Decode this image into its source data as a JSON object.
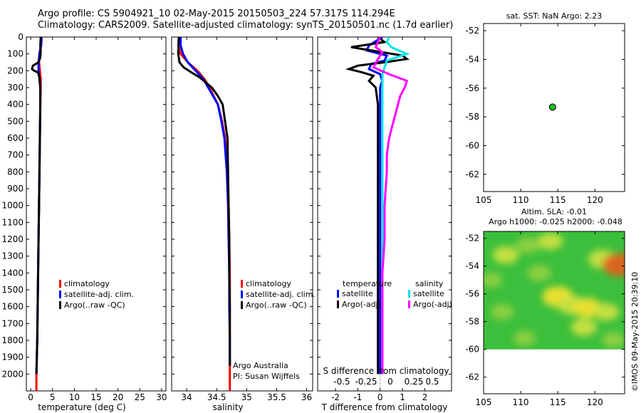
{
  "title_line1": "Argo profile: CS 5904921_10 02-May-2015 20150503_224 57.317S 114.294E",
  "title_line2": "Climatology: CARS2009. Satellite-adjusted climatology: synTS_20150501.nc (1.7d earlier)",
  "stamp": "©IMOS 09-May-2015 20:39:10",
  "colors": {
    "climatology": "#ff0000",
    "satellite": "#0000ff",
    "argo": "#000000",
    "sat_salinity": "#00e5e5",
    "argo_salinity": "#ff00ff",
    "marker": "#22bb22"
  },
  "chart_data": [
    {
      "id": "temperature",
      "type": "line",
      "xlabel": "temperature (deg C)",
      "ylabel": "",
      "xlim": [
        -1,
        31
      ],
      "ylim": [
        2100,
        0
      ],
      "xticks": [
        0,
        5,
        10,
        15,
        20,
        25,
        30
      ],
      "yticks": [
        0,
        100,
        200,
        300,
        400,
        500,
        600,
        700,
        800,
        900,
        1000,
        1100,
        1200,
        1300,
        1400,
        1500,
        1600,
        1700,
        1800,
        1900,
        2000
      ],
      "legend": [
        "climatology",
        "satellite-adj. clim.",
        "Argo(..raw -QC)"
      ],
      "series": [
        {
          "name": "climatology",
          "color": "#ff0000",
          "points": [
            [
              2.4,
              0
            ],
            [
              2.3,
              50
            ],
            [
              2.0,
              100
            ],
            [
              1.9,
              150
            ],
            [
              2.1,
              200
            ],
            [
              2.3,
              250
            ],
            [
              2.3,
              300
            ],
            [
              2.2,
              400
            ],
            [
              2.1,
              600
            ],
            [
              2.0,
              800
            ],
            [
              1.9,
              1000
            ],
            [
              1.8,
              1200
            ],
            [
              1.7,
              1400
            ],
            [
              1.6,
              1600
            ],
            [
              1.5,
              1800
            ],
            [
              1.3,
              2000
            ],
            [
              1.3,
              2100
            ]
          ]
        },
        {
          "name": "satellite-adj. clim.",
          "color": "#0000ff",
          "points": [
            [
              2.5,
              0
            ],
            [
              2.4,
              50
            ],
            [
              2.0,
              100
            ],
            [
              1.8,
              150
            ],
            [
              1.8,
              200
            ],
            [
              2.0,
              250
            ],
            [
              2.2,
              300
            ],
            [
              2.2,
              400
            ],
            [
              2.1,
              600
            ],
            [
              2.0,
              800
            ],
            [
              1.9,
              1000
            ],
            [
              1.8,
              1200
            ],
            [
              1.7,
              1400
            ],
            [
              1.6,
              1600
            ],
            [
              1.5,
              1800
            ],
            [
              1.3,
              2000
            ]
          ]
        },
        {
          "name": "Argo(..raw -QC)",
          "color": "#000000",
          "points": [
            [
              2.3,
              0
            ],
            [
              2.2,
              50
            ],
            [
              2.3,
              80
            ],
            [
              2.2,
              120
            ],
            [
              1.8,
              150
            ],
            [
              0.5,
              170
            ],
            [
              0.3,
              190
            ],
            [
              0.8,
              200
            ],
            [
              1.7,
              210
            ],
            [
              2.0,
              240
            ],
            [
              2.2,
              300
            ],
            [
              2.2,
              400
            ],
            [
              2.1,
              600
            ],
            [
              2.0,
              800
            ],
            [
              1.9,
              1000
            ],
            [
              1.8,
              1200
            ],
            [
              1.7,
              1400
            ],
            [
              1.6,
              1600
            ],
            [
              1.5,
              1800
            ],
            [
              1.3,
              2000
            ]
          ]
        }
      ]
    },
    {
      "id": "salinity",
      "type": "line",
      "xlabel": "salinity",
      "xlim": [
        33.75,
        36.1
      ],
      "ylim": [
        2100,
        0
      ],
      "xticks": [
        34,
        34.5,
        35,
        35.5,
        36
      ],
      "legend": [
        "climatology",
        "satellite-adj. clim.",
        "Argo(..raw -QC)"
      ],
      "annotation": [
        "Argo Australia",
        "PI: Susan Wijffels"
      ],
      "series": [
        {
          "name": "climatology",
          "color": "#ff0000",
          "points": [
            [
              33.87,
              0
            ],
            [
              33.86,
              50
            ],
            [
              33.9,
              100
            ],
            [
              34.02,
              150
            ],
            [
              34.18,
              200
            ],
            [
              34.3,
              250
            ],
            [
              34.38,
              300
            ],
            [
              34.45,
              350
            ],
            [
              34.52,
              400
            ],
            [
              34.59,
              500
            ],
            [
              34.64,
              600
            ],
            [
              34.68,
              800
            ],
            [
              34.7,
              1000
            ],
            [
              34.71,
              1200
            ],
            [
              34.72,
              1400
            ],
            [
              34.72,
              1600
            ],
            [
              34.72,
              1800
            ],
            [
              34.72,
              2000
            ],
            [
              34.72,
              2100
            ]
          ]
        },
        {
          "name": "satellite-adj. clim.",
          "color": "#0000ff",
          "points": [
            [
              33.9,
              0
            ],
            [
              33.9,
              50
            ],
            [
              33.94,
              100
            ],
            [
              34.02,
              150
            ],
            [
              34.15,
              200
            ],
            [
              34.28,
              250
            ],
            [
              34.36,
              300
            ],
            [
              34.44,
              350
            ],
            [
              34.52,
              400
            ],
            [
              34.58,
              500
            ],
            [
              34.63,
              600
            ],
            [
              34.67,
              800
            ],
            [
              34.69,
              1000
            ],
            [
              34.7,
              1200
            ],
            [
              34.71,
              1400
            ],
            [
              34.71,
              1600
            ],
            [
              34.72,
              1800
            ],
            [
              34.72,
              1950
            ]
          ]
        },
        {
          "name": "Argo(..raw -QC)",
          "color": "#000000",
          "points": [
            [
              33.87,
              0
            ],
            [
              33.86,
              100
            ],
            [
              33.88,
              150
            ],
            [
              33.95,
              180
            ],
            [
              34.08,
              210
            ],
            [
              34.22,
              240
            ],
            [
              34.32,
              270
            ],
            [
              34.42,
              300
            ],
            [
              34.52,
              350
            ],
            [
              34.6,
              400
            ],
            [
              34.64,
              500
            ],
            [
              34.68,
              600
            ],
            [
              34.69,
              800
            ],
            [
              34.7,
              1000
            ],
            [
              34.71,
              1200
            ],
            [
              34.71,
              1400
            ],
            [
              34.72,
              1600
            ],
            [
              34.72,
              1800
            ],
            [
              34.72,
              1950
            ]
          ]
        }
      ]
    },
    {
      "id": "difference",
      "type": "line",
      "xlabel": "T difference from climatology",
      "xlabel_top": "S difference from climatology",
      "xlim": [
        -2.8,
        3.2
      ],
      "ylim": [
        2100,
        0
      ],
      "xticks": [
        -2,
        -1,
        0,
        1,
        2
      ],
      "xtick_labels": [
        "-2",
        "-1",
        "0",
        "1",
        "2"
      ],
      "s_ticks": [
        -0.5,
        -0.25,
        0,
        0.25,
        0.5
      ],
      "s_tick_labels": [
        "-0.5",
        "-0.25",
        "0",
        "0.25",
        "0.5"
      ],
      "legend_headers": [
        "temperature",
        "salinity"
      ],
      "legend": [
        [
          "satellite",
          "Argo(-adj)"
        ],
        [
          "satellite",
          "Argo(-adj)"
        ]
      ],
      "series": [
        {
          "name": "temperature satellite",
          "color": "#0000ff",
          "points": [
            [
              0.1,
              0
            ],
            [
              -0.5,
              50
            ],
            [
              -0.6,
              80
            ],
            [
              0.3,
              110
            ],
            [
              0.2,
              140
            ],
            [
              -0.4,
              160
            ],
            [
              -0.5,
              190
            ],
            [
              0.0,
              220
            ],
            [
              0.1,
              260
            ],
            [
              0.0,
              300
            ],
            [
              0.0,
              500
            ],
            [
              0.0,
              1000
            ],
            [
              0.0,
              1500
            ],
            [
              0.0,
              2000
            ]
          ]
        },
        {
          "name": "temperature Argo(-adj)",
          "color": "#000000",
          "points": [
            [
              -0.1,
              0
            ],
            [
              0.2,
              30
            ],
            [
              -1.3,
              60
            ],
            [
              -0.4,
              80
            ],
            [
              1.0,
              110
            ],
            [
              1.2,
              130
            ],
            [
              0.2,
              150
            ],
            [
              -1.0,
              170
            ],
            [
              -1.4,
              190
            ],
            [
              -0.8,
              210
            ],
            [
              -0.3,
              230
            ],
            [
              -0.5,
              260
            ],
            [
              -0.2,
              300
            ],
            [
              -0.1,
              400
            ],
            [
              -0.1,
              800
            ],
            [
              -0.1,
              1200
            ],
            [
              -0.1,
              1600
            ],
            [
              -0.1,
              2000
            ]
          ]
        },
        {
          "name": "salinity satellite",
          "color": "#00e5e5",
          "points": [
            [
              0.4,
              0
            ],
            [
              0.3,
              30
            ],
            [
              0.5,
              60
            ],
            [
              1.2,
              100
            ],
            [
              0.3,
              140
            ],
            [
              0.2,
              180
            ],
            [
              0.1,
              220
            ],
            [
              0.1,
              300
            ],
            [
              0.1,
              500
            ],
            [
              0.1,
              1000
            ],
            [
              0.1,
              1500
            ],
            [
              0.1,
              2000
            ]
          ]
        },
        {
          "name": "salinity Argo(-adj)",
          "color": "#ff00ff",
          "points": [
            [
              0.0,
              0
            ],
            [
              -0.2,
              60
            ],
            [
              0.1,
              90
            ],
            [
              -0.1,
              130
            ],
            [
              -0.3,
              180
            ],
            [
              0.4,
              220
            ],
            [
              1.2,
              260
            ],
            [
              1.1,
              300
            ],
            [
              0.9,
              350
            ],
            [
              0.8,
              400
            ],
            [
              0.6,
              500
            ],
            [
              0.4,
              600
            ],
            [
              0.3,
              700
            ],
            [
              0.3,
              800
            ],
            [
              0.2,
              1000
            ],
            [
              0.2,
              1200
            ],
            [
              0.1,
              1400
            ],
            [
              0.1,
              1600
            ],
            [
              0.1,
              1800
            ],
            [
              0.1,
              2000
            ]
          ]
        }
      ]
    },
    {
      "id": "sst_map",
      "type": "scatter",
      "title": "sat. SST: NaN Argo: 2.23",
      "xlim": [
        105,
        124
      ],
      "ylim": [
        -63.2,
        -51.5
      ],
      "xticks": [
        105,
        110,
        115,
        120
      ],
      "yticks": [
        -52,
        -54,
        -56,
        -58,
        -60,
        -62
      ],
      "points": [
        {
          "x": 114.294,
          "y": -57.317
        }
      ]
    },
    {
      "id": "sla_map",
      "type": "heatmap",
      "title_line1": "Altim. SLA: -0.01",
      "title_line2": "Argo h1000: -0.025 h2000: -0.048",
      "xlim": [
        105,
        124
      ],
      "ylim": [
        -63.2,
        -51.5
      ],
      "xticks": [
        105,
        110,
        115,
        120
      ],
      "yticks": [
        -52,
        -54,
        -56,
        -58,
        -60,
        -62
      ],
      "data_extent": {
        "lat": [
          -60,
          -51.5
        ]
      },
      "blobs": [
        {
          "x": 108,
          "y": -53.2,
          "v": 0.6
        },
        {
          "x": 111,
          "y": -52.5,
          "v": 0.5
        },
        {
          "x": 106,
          "y": -55.0,
          "v": 0.4
        },
        {
          "x": 114,
          "y": -52.2,
          "v": 0.55
        },
        {
          "x": 121,
          "y": -53.5,
          "v": 0.7
        },
        {
          "x": 123.3,
          "y": -53.9,
          "v": 1.0
        },
        {
          "x": 115,
          "y": -56.2,
          "v": 0.85
        },
        {
          "x": 116.8,
          "y": -56.8,
          "v": 0.7
        },
        {
          "x": 119,
          "y": -57.0,
          "v": 0.75
        },
        {
          "x": 121.5,
          "y": -57.3,
          "v": 0.6
        },
        {
          "x": 118.5,
          "y": -58.4,
          "v": 0.6
        },
        {
          "x": 107.5,
          "y": -57.3,
          "v": 0.45
        },
        {
          "x": 110.5,
          "y": -59.2,
          "v": 0.4
        },
        {
          "x": 122.5,
          "y": -59.3,
          "v": 0.45
        },
        {
          "x": 112.5,
          "y": -54.5,
          "v": 0.5
        }
      ]
    }
  ]
}
